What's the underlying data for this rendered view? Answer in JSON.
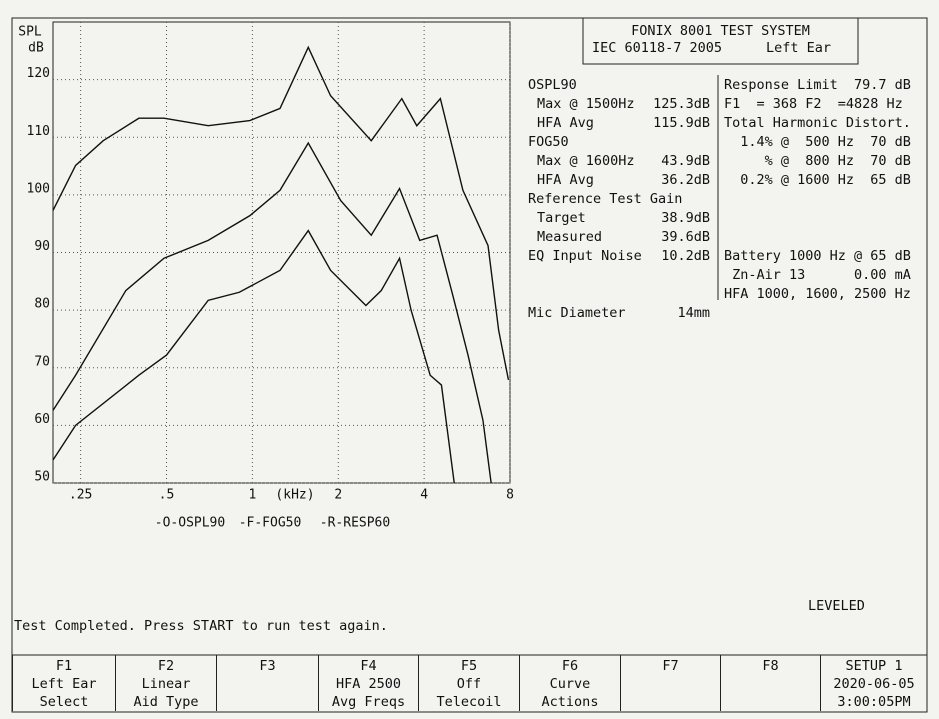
{
  "chart_data": {
    "type": "line",
    "x_scale": "log",
    "grid": true,
    "y_label": "SPL",
    "y_unit": "dB",
    "x_label": "(kHz)",
    "xlim": [
      0.2,
      8
    ],
    "ylim": [
      50,
      130
    ],
    "xticks": [
      {
        "value": 0.25,
        "label": ".25"
      },
      {
        "value": 0.5,
        "label": ".5"
      },
      1,
      2,
      4,
      8
    ],
    "yticks": [
      50,
      60,
      70,
      80,
      90,
      100,
      110,
      120
    ],
    "series": [
      {
        "name": "-O-OSPL90",
        "color": "#111111",
        "x": [
          0.2,
          0.24,
          0.3,
          0.4,
          0.49,
          0.7,
          0.98,
          1.25,
          1.57,
          1.88,
          2.61,
          3.34,
          3.77,
          4.56,
          5.47,
          6.7,
          7.3,
          7.9
        ],
        "values": [
          97.3,
          105.1,
          109.4,
          113.3,
          113.3,
          112,
          112.9,
          115,
          125.6,
          117.2,
          109.4,
          116.7,
          112,
          116.7,
          100.8,
          91.2,
          76.5,
          67.9
        ]
      },
      {
        "name": "-F-FOG50",
        "color": "#111111",
        "x": [
          0.2,
          0.24,
          0.4,
          0.5,
          0.7,
          0.9,
          1.25,
          1.57,
          1.88,
          2.5,
          2.83,
          3.28,
          3.6,
          4.2,
          4.6,
          5.1
        ],
        "values": [
          54,
          60,
          68.7,
          72.2,
          81.7,
          83.1,
          86.9,
          93.8,
          86.9,
          80.8,
          83.4,
          89,
          80,
          68.7,
          67,
          50
        ]
      },
      {
        "name": "-R-RESP60",
        "color": "#111111",
        "x": [
          0.2,
          0.24,
          0.36,
          0.49,
          0.7,
          0.98,
          1.25,
          1.57,
          2.04,
          2.61,
          3.28,
          3.86,
          4.44,
          5.04,
          5.7,
          6.43,
          6.87
        ],
        "values": [
          62.6,
          68.7,
          83.4,
          89,
          92.1,
          96.4,
          100.8,
          109,
          99,
          93,
          101.1,
          92.1,
          93,
          82.6,
          72.2,
          60.9,
          50
        ]
      }
    ]
  },
  "header": {
    "title": "FONIX 8001 TEST SYSTEM",
    "standard": "IEC 60118-7 2005",
    "ear": "Left Ear"
  },
  "results_left": {
    "groups": [
      {
        "title": "OSPL90",
        "rows": [
          [
            "Max @ 1500Hz",
            "125.3dB"
          ],
          [
            "HFA Avg",
            "115.9dB"
          ]
        ]
      },
      {
        "title": "FOG50",
        "rows": [
          [
            "Max @ 1600Hz",
            "43.9dB"
          ],
          [
            "HFA Avg",
            "36.2dB"
          ]
        ]
      },
      {
        "title": "Reference Test Gain",
        "rows": [
          [
            "Target",
            "38.9dB"
          ],
          [
            "Measured",
            "39.6dB"
          ]
        ]
      }
    ],
    "noise": [
      "EQ Input Noise",
      "10.2dB"
    ],
    "mic": [
      "Mic Diameter",
      "14mm"
    ]
  },
  "results_right": {
    "top_lines": [
      "Response Limit  79.7 dB",
      "F1  = 368 F2  =4828 Hz",
      "Total Harmonic Distort.",
      "  1.4% @  500 Hz  70 dB",
      "     % @  800 Hz  70 dB",
      "  0.2% @ 1600 Hz  65 dB"
    ],
    "bottom_lines": [
      "Battery 1000 Hz @ 65 dB",
      " Zn-Air 13      0.00 mA",
      "HFA 1000, 1600, 2500 Hz"
    ]
  },
  "status": {
    "leveled": "LEVELED",
    "message": "Test Completed. Press START to run test again."
  },
  "function_keys": [
    [
      "F1",
      "Left Ear",
      "Select"
    ],
    [
      "F2",
      "Linear",
      "Aid Type"
    ],
    [
      "F3"
    ],
    [
      "F4",
      "HFA 2500",
      "Avg Freqs"
    ],
    [
      "F5",
      "Off",
      "Telecoil"
    ],
    [
      "F6",
      "Curve",
      "Actions"
    ],
    [
      "F7"
    ],
    [
      "F8"
    ],
    [
      "SETUP 1",
      "2020-06-05",
      "3:00:05PM"
    ]
  ]
}
